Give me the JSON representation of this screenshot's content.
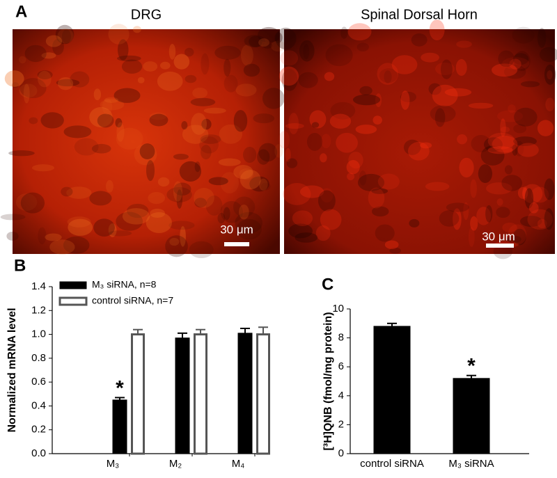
{
  "panel_a": {
    "label": "A",
    "images": [
      {
        "title": "DRG",
        "scale_bar": "30 μm"
      },
      {
        "title": "Spinal Dorsal Horn",
        "scale_bar": "30 μm"
      }
    ]
  },
  "chart_data": [
    {
      "type": "bar",
      "panel_label": "B",
      "y_label": "Normalized mRNA level",
      "categories": [
        "M₃",
        "M₂",
        "M₄"
      ],
      "series": [
        {
          "name": "M₃ siRNA, n=8",
          "color": "#000000",
          "values": [
            0.45,
            0.97,
            1.01
          ],
          "errors": [
            0.02,
            0.04,
            0.04
          ]
        },
        {
          "name": "control siRNA, n=7",
          "color": "#ffffff",
          "values": [
            1.0,
            1.0,
            1.0
          ],
          "errors": [
            0.04,
            0.04,
            0.06
          ]
        }
      ],
      "annotations": [
        {
          "text": "*",
          "category": "M₃",
          "series": "M₃ siRNA, n=8"
        }
      ],
      "ylim": [
        0,
        1.4
      ],
      "yticks": [
        {
          "value": 0,
          "label": "0.0"
        },
        0.2,
        0.4,
        0.6,
        0.8,
        {
          "value": 1,
          "label": "1.0"
        },
        1.2,
        1.4
      ]
    },
    {
      "type": "bar",
      "panel_label": "C",
      "y_label": "[³H]QNB (fmol/mg protein)",
      "categories": [
        "control siRNA",
        "M₃ siRNA"
      ],
      "series": [
        {
          "color": "#000000",
          "values": [
            8.8,
            5.2
          ],
          "errors": [
            0.2,
            0.2
          ]
        }
      ],
      "annotations": [
        {
          "text": "*",
          "category": "M₃ siRNA"
        }
      ],
      "ylim": [
        0,
        10
      ],
      "yticks": [
        0,
        2,
        4,
        6,
        8,
        10
      ]
    }
  ]
}
